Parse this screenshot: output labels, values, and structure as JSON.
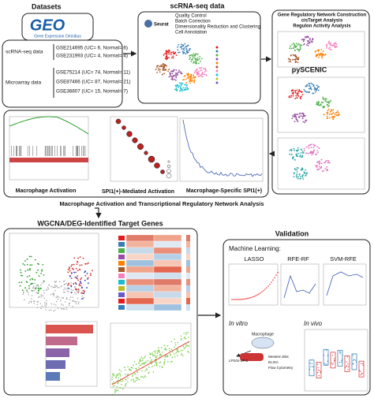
{
  "datasets": {
    "title": "Datasets",
    "geo_logo": "GEO",
    "geo_name": "Gene Expression Omnibus",
    "scrna_label": "scRNA-seq data",
    "scrna_sets": [
      "GSE214695 (UC= 6, Normal= 6)",
      "GSE231993 (UC= 4, Normal= 4)"
    ],
    "microarray_label": "Microarray data",
    "microarray_sets": [
      "GSE75214 (UC= 74, Normal= 11)",
      "GSE87466 (UC= 87, Normal= 21)",
      "GSE36807 (UC= 15, Normal= 7)"
    ]
  },
  "scrna": {
    "title": "scRNA-seq data",
    "tool": "Seurat",
    "steps": [
      "Quality Control",
      "Batch Correction",
      "Dimensionality Reduction and Clustering",
      "Cell Annotation"
    ]
  },
  "pyscenic": {
    "title": "pySCENIC",
    "steps": [
      "Gene Regulatory Network Construction",
      "cisTarget Analysis",
      "Regulon Activity Analysis"
    ]
  },
  "activation": {
    "captions": [
      "Macrophage Activation",
      "SPI1(+)-Mediated Activation",
      "Macrophage-Specific SPI1(+)"
    ],
    "summary": "Macrophage Activation and Transcriptional Regulatory Network Analysis"
  },
  "wgcna": {
    "title": "WGCNA/DEG-Identified Target Genes"
  },
  "validation": {
    "title": "Validation",
    "ml_label": "Machine Learning:",
    "methods": [
      "LASSO",
      "RFE-RF",
      "SVM-RFE"
    ],
    "in_vitro": "In vitro",
    "in_vivo": "In vivo",
    "cell": "Macrophage",
    "treatment": "LPS/si-SPI1",
    "assays": [
      "Western Blot",
      "ELISA",
      "Flow Cytometry"
    ]
  }
}
